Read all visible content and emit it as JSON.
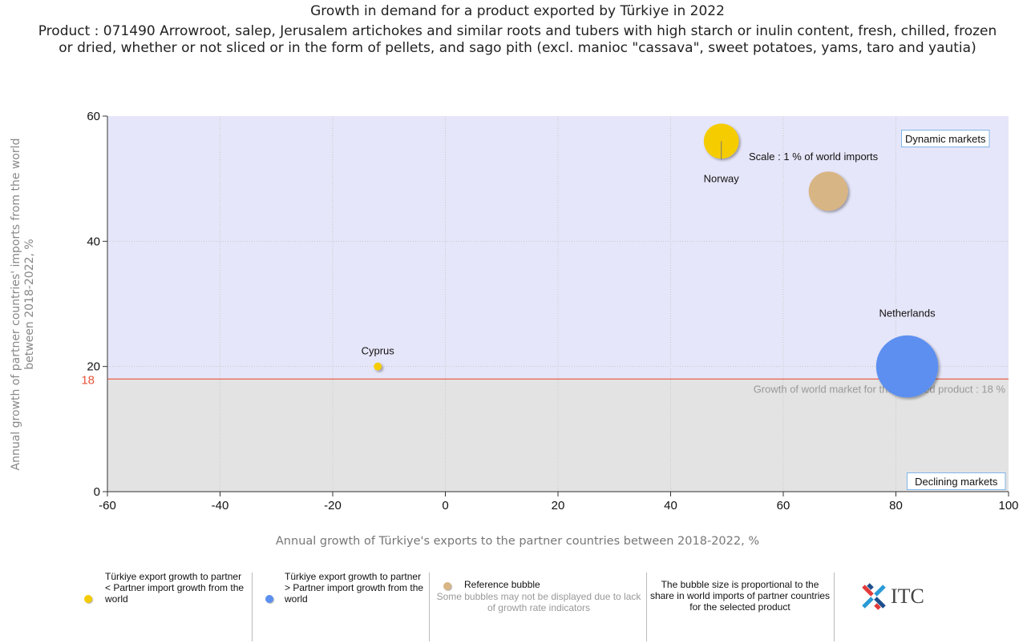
{
  "title": "Growth in demand for a product exported by Türkiye in 2022",
  "subtitle": "Product : 071490 Arrowroot, salep, Jerusalem artichokes and similar roots and tubers with high starch or inulin content, fresh, chilled, frozen or dried, whether or not sliced or in the form of pellets, and sago pith (excl. manioc \"cassava\", sweet potatoes, yams, taro and yautia)",
  "chart_data": {
    "type": "scatter",
    "xlabel": "Annual growth of Türkiye's exports to the partner countries between 2018-2022, %",
    "ylabel": "Annual growth of partner countries' imports from the world between 2018-2022, %",
    "xlim": [
      -60,
      100
    ],
    "ylim": [
      0,
      60
    ],
    "xticks": [
      "-60",
      "-40",
      "-20",
      "0",
      "20",
      "40",
      "60",
      "80",
      "100"
    ],
    "yticks": [
      "0",
      "20",
      "40",
      "60"
    ],
    "grid": true,
    "world_growth_line": {
      "value": 18,
      "label_left": "18",
      "label": "Growth of world market for the selected product : 18 %"
    },
    "regions": {
      "upper": "Dynamic markets",
      "lower": "Declining markets"
    },
    "points": [
      {
        "name": "Norway",
        "x": 49,
        "y": 56,
        "share": 0.8,
        "category": "below"
      },
      {
        "name": "Cyprus",
        "x": -12,
        "y": 20,
        "share": 0.04,
        "category": "below"
      },
      {
        "name": "Netherlands",
        "x": 82,
        "y": 20,
        "share": 2.5,
        "category": "above"
      }
    ],
    "reference_bubble": {
      "x": 68,
      "y": 48,
      "share": 1,
      "label": "Scale : 1 % of world imports"
    }
  },
  "colors": {
    "below": "#f5cc00",
    "above": "#5b8ff0",
    "reference": "#d8b584",
    "upper_area": "#e6e6fa",
    "lower_area": "#e3e3e3",
    "world_line": "#e8553a",
    "label18": "#e8553a"
  },
  "legend": {
    "item1": "Türkiye export growth to partner < Partner import growth from the world",
    "item2": "Türkiye export growth to partner > Partner import growth from the world",
    "item3_title": "Reference bubble",
    "item3_note": "Some bubbles may not be displayed due to lack of growth rate indicators",
    "item4": "The bubble size is proportional to the share in world imports of partner countries for the selected product"
  },
  "logo": {
    "text": "ITC"
  }
}
